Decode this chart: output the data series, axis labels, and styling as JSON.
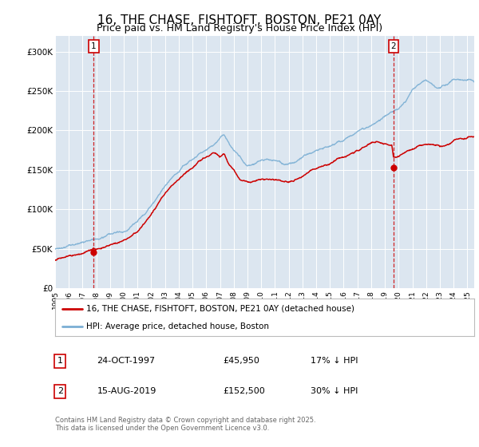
{
  "title": "16, THE CHASE, FISHTOFT, BOSTON, PE21 0AY",
  "subtitle": "Price paid vs. HM Land Registry's House Price Index (HPI)",
  "xlim_start": 1995.0,
  "xlim_end": 2025.5,
  "ylim": [
    0,
    320000
  ],
  "yticks": [
    0,
    50000,
    100000,
    150000,
    200000,
    250000,
    300000
  ],
  "ytick_labels": [
    "£0",
    "£50K",
    "£100K",
    "£150K",
    "£200K",
    "£250K",
    "£300K"
  ],
  "xticks": [
    1995,
    1996,
    1997,
    1998,
    1999,
    2000,
    2001,
    2002,
    2003,
    2004,
    2005,
    2006,
    2007,
    2008,
    2009,
    2010,
    2011,
    2012,
    2013,
    2014,
    2015,
    2016,
    2017,
    2018,
    2019,
    2020,
    2021,
    2022,
    2023,
    2024,
    2025
  ],
  "background_color": "#ffffff",
  "plot_bg_color": "#dce6f0",
  "grid_color": "#ffffff",
  "hpi_color": "#7bafd4",
  "price_color": "#cc0000",
  "sale1_x": 1997.81,
  "sale1_y": 45950,
  "sale1_label": "1",
  "sale1_date": "24-OCT-1997",
  "sale1_price": "£45,950",
  "sale1_note": "17% ↓ HPI",
  "sale2_x": 2019.62,
  "sale2_y": 152500,
  "sale2_label": "2",
  "sale2_date": "15-AUG-2019",
  "sale2_price": "£152,500",
  "sale2_note": "30% ↓ HPI",
  "legend_line1": "16, THE CHASE, FISHTOFT, BOSTON, PE21 0AY (detached house)",
  "legend_line2": "HPI: Average price, detached house, Boston",
  "footnote": "Contains HM Land Registry data © Crown copyright and database right 2025.\nThis data is licensed under the Open Government Licence v3.0.",
  "title_fontsize": 11,
  "subtitle_fontsize": 9,
  "hpi_key_years": [
    1995.0,
    1995.5,
    1996.0,
    1996.5,
    1997.0,
    1997.5,
    1998.0,
    1998.5,
    1999.0,
    1999.5,
    2000.0,
    2000.5,
    2001.0,
    2001.5,
    2002.0,
    2002.5,
    2003.0,
    2003.5,
    2004.0,
    2004.5,
    2005.0,
    2005.5,
    2006.0,
    2006.5,
    2007.0,
    2007.3,
    2007.6,
    2008.0,
    2008.5,
    2009.0,
    2009.5,
    2010.0,
    2010.5,
    2011.0,
    2011.5,
    2012.0,
    2012.5,
    2013.0,
    2013.5,
    2014.0,
    2014.5,
    2015.0,
    2015.5,
    2016.0,
    2016.5,
    2017.0,
    2017.5,
    2018.0,
    2018.5,
    2019.0,
    2019.5,
    2020.0,
    2020.5,
    2021.0,
    2021.5,
    2022.0,
    2022.5,
    2023.0,
    2023.5,
    2024.0,
    2024.5,
    2025.0,
    2025.5
  ],
  "hpi_key_vals": [
    50000,
    51000,
    53000,
    55000,
    57000,
    59000,
    61000,
    63000,
    66000,
    69000,
    72000,
    76000,
    82000,
    90000,
    100000,
    112000,
    124000,
    133000,
    140000,
    148000,
    155000,
    162000,
    168000,
    175000,
    185000,
    190000,
    183000,
    172000,
    162000,
    152000,
    153000,
    157000,
    158000,
    157000,
    156000,
    154000,
    155000,
    158000,
    162000,
    166000,
    170000,
    173000,
    177000,
    180000,
    185000,
    190000,
    196000,
    202000,
    208000,
    214000,
    218000,
    222000,
    232000,
    248000,
    258000,
    262000,
    258000,
    255000,
    258000,
    262000,
    263000,
    261000,
    260000
  ],
  "price_key_years": [
    1995.0,
    1995.5,
    1996.0,
    1996.5,
    1997.0,
    1997.5,
    1997.81,
    1998.0,
    1998.5,
    1999.0,
    1999.5,
    2000.0,
    2000.5,
    2001.0,
    2001.5,
    2002.0,
    2002.5,
    2003.0,
    2003.5,
    2004.0,
    2004.5,
    2005.0,
    2005.5,
    2006.0,
    2006.5,
    2007.0,
    2007.3,
    2007.6,
    2008.0,
    2008.5,
    2009.0,
    2009.5,
    2010.0,
    2010.5,
    2011.0,
    2011.5,
    2012.0,
    2012.5,
    2013.0,
    2013.5,
    2014.0,
    2014.5,
    2015.0,
    2015.5,
    2016.0,
    2016.5,
    2017.0,
    2017.5,
    2018.0,
    2018.5,
    2019.0,
    2019.5,
    2019.62,
    2020.0,
    2020.5,
    2021.0,
    2021.5,
    2022.0,
    2022.5,
    2023.0,
    2023.5,
    2024.0,
    2024.5,
    2025.0,
    2025.5
  ],
  "price_key_vals": [
    36000,
    37000,
    39000,
    41000,
    43000,
    45000,
    45950,
    44000,
    46000,
    48000,
    51000,
    55000,
    61000,
    68000,
    78000,
    89000,
    102000,
    115000,
    124000,
    130000,
    138000,
    145000,
    152000,
    157000,
    162000,
    158000,
    160000,
    148000,
    140000,
    128000,
    126000,
    128000,
    130000,
    129000,
    128000,
    127000,
    126000,
    128000,
    132000,
    136000,
    140000,
    143000,
    146000,
    149000,
    153000,
    157000,
    162000,
    167000,
    172000,
    172000,
    170000,
    168000,
    152500,
    155000,
    160000,
    163000,
    167000,
    170000,
    168000,
    165000,
    167000,
    170000,
    172000,
    173000,
    175000
  ]
}
